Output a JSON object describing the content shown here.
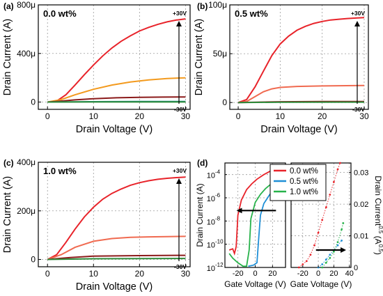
{
  "colors": {
    "red": "#e8232a",
    "orange": "#f39a1e",
    "salmon": "#f06a50",
    "darkred": "#8b1a1a",
    "teal": "#1a8a8a",
    "green": "#2e8b3a",
    "blue": "#1f8fd6",
    "green2": "#27b24a"
  },
  "chart_data": [
    {
      "panel": "(a)",
      "type": "line",
      "annotation": "0.0 wt%",
      "xlabel": "Drain Voltage (V)",
      "ylabel": "Drain Current (A)",
      "xlim": [
        -2,
        31
      ],
      "ylim": [
        -60,
        800
      ],
      "yunit": 1e-06,
      "xticks": [
        "0",
        "10",
        "20",
        "30"
      ],
      "yticks": [
        {
          "v": 0,
          "t": "0"
        },
        {
          "v": 400,
          "t": "400μ"
        },
        {
          "v": 800,
          "t": "800μ"
        }
      ],
      "gate_top": "+30V",
      "gate_bottom": "-30V",
      "series": [
        {
          "color": "#e8232a",
          "points": [
            [
              0,
              0
            ],
            [
              2,
              8
            ],
            [
              4,
              60
            ],
            [
              6,
              140
            ],
            [
              8,
              225
            ],
            [
              10,
              305
            ],
            [
              12,
              380
            ],
            [
              14,
              445
            ],
            [
              16,
              500
            ],
            [
              18,
              545
            ],
            [
              20,
              585
            ],
            [
              22,
              615
            ],
            [
              24,
              640
            ],
            [
              26,
              660
            ],
            [
              28,
              675
            ],
            [
              30,
              685
            ]
          ]
        },
        {
          "color": "#f39a1e",
          "points": [
            [
              0,
              0
            ],
            [
              3,
              20
            ],
            [
              6,
              60
            ],
            [
              10,
              105
            ],
            [
              14,
              140
            ],
            [
              18,
              165
            ],
            [
              22,
              182
            ],
            [
              26,
              194
            ],
            [
              30,
              200
            ]
          ]
        },
        {
          "color": "#8b1a1a",
          "points": [
            [
              0,
              0
            ],
            [
              3,
              8
            ],
            [
              6,
              18
            ],
            [
              10,
              28
            ],
            [
              15,
              35
            ],
            [
              20,
              39
            ],
            [
              25,
              41
            ],
            [
              30,
              42
            ]
          ]
        },
        {
          "color": "#1a8a8a",
          "points": [
            [
              0,
              0
            ],
            [
              5,
              2
            ],
            [
              10,
              3
            ],
            [
              20,
              4
            ],
            [
              30,
              4
            ]
          ]
        },
        {
          "color": "#2e8b3a",
          "points": [
            [
              0,
              0
            ],
            [
              10,
              1
            ],
            [
              20,
              1
            ],
            [
              30,
              1
            ]
          ]
        }
      ]
    },
    {
      "panel": "(b)",
      "type": "line",
      "annotation": "0.5 wt%",
      "xlabel": "Drain Voltage (V)",
      "ylabel": "Drain Current (A)",
      "xlim": [
        -2,
        31
      ],
      "ylim": [
        -7,
        100
      ],
      "yunit": 1e-06,
      "xticks": [
        "0",
        "10",
        "20",
        "30"
      ],
      "yticks": [
        {
          "v": 0,
          "t": "0"
        },
        {
          "v": 50,
          "t": "50μ"
        },
        {
          "v": 100,
          "t": "100μ"
        }
      ],
      "gate_top": "+30V",
      "gate_bottom": "-30V",
      "series": [
        {
          "color": "#e8232a",
          "points": [
            [
              0,
              0
            ],
            [
              2,
              3
            ],
            [
              4,
              16
            ],
            [
              6,
              32
            ],
            [
              8,
              48
            ],
            [
              10,
              60
            ],
            [
              12,
              68
            ],
            [
              14,
              74
            ],
            [
              16,
              78
            ],
            [
              18,
              81
            ],
            [
              20,
              83
            ],
            [
              22,
              84.5
            ],
            [
              24,
              85.3
            ],
            [
              26,
              86
            ],
            [
              28,
              86.5
            ],
            [
              30,
              87
            ]
          ]
        },
        {
          "color": "#f06a50",
          "points": [
            [
              0,
              0
            ],
            [
              2,
              1
            ],
            [
              4,
              6
            ],
            [
              6,
              11
            ],
            [
              8,
              14
            ],
            [
              10,
              15.5
            ],
            [
              14,
              16.5
            ],
            [
              20,
              17
            ],
            [
              30,
              17.5
            ]
          ]
        },
        {
          "color": "#8b1a1a",
          "points": [
            [
              0,
              0
            ],
            [
              10,
              0.8
            ],
            [
              20,
              1
            ],
            [
              30,
              1
            ]
          ]
        },
        {
          "color": "#2e8b3a",
          "points": [
            [
              0,
              0
            ],
            [
              10,
              0.3
            ],
            [
              30,
              0.4
            ]
          ]
        }
      ]
    },
    {
      "panel": "(c)",
      "type": "line",
      "annotation": "1.0 wt%",
      "xlabel": "Drain Voltage (V)",
      "ylabel": "Drain Current (A)",
      "xlim": [
        -2,
        31
      ],
      "ylim": [
        -30,
        400
      ],
      "yunit": 1e-06,
      "xticks": [
        "0",
        "10",
        "20",
        "30"
      ],
      "yticks": [
        {
          "v": 0,
          "t": "0"
        },
        {
          "v": 200,
          "t": "200μ"
        },
        {
          "v": 400,
          "t": "400μ"
        }
      ],
      "gate_top": "+30V",
      "gate_bottom": "-30V",
      "series": [
        {
          "color": "#e8232a",
          "points": [
            [
              0,
              0
            ],
            [
              2,
              20
            ],
            [
              4,
              70
            ],
            [
              6,
              125
            ],
            [
              8,
              175
            ],
            [
              10,
              215
            ],
            [
              12,
              248
            ],
            [
              14,
              272
            ],
            [
              16,
              290
            ],
            [
              18,
              305
            ],
            [
              20,
              316
            ],
            [
              22,
              324
            ],
            [
              24,
              330
            ],
            [
              26,
              334
            ],
            [
              28,
              337
            ],
            [
              30,
              339
            ]
          ]
        },
        {
          "color": "#f06a50",
          "points": [
            [
              0,
              0
            ],
            [
              3,
              20
            ],
            [
              6,
              50
            ],
            [
              10,
              75
            ],
            [
              14,
              86
            ],
            [
              18,
              91
            ],
            [
              22,
              93
            ],
            [
              26,
              94
            ],
            [
              30,
              95
            ]
          ]
        },
        {
          "color": "#8b1a1a",
          "points": [
            [
              0,
              0
            ],
            [
              5,
              8
            ],
            [
              10,
              14
            ],
            [
              20,
              16
            ],
            [
              30,
              17
            ]
          ]
        },
        {
          "color": "#2e8b3a",
          "points": [
            [
              0,
              0
            ],
            [
              10,
              3
            ],
            [
              30,
              4
            ]
          ]
        }
      ]
    },
    {
      "panel": "(d)",
      "type": "line",
      "subtype": "transfer",
      "xlabel_left": "Gate Voltage (V)",
      "xlabel_right": "Gate Voltage (V)",
      "ylabel_left": "Drain Current (A)",
      "ylabel_right": "Drain Current",
      "ylabel_right_exp": "0.5",
      "ylabel_right_unit": " (A",
      "ylabel_right_unit_exp": "0.5",
      "ylabel_right_close": ")",
      "left_xlim": [
        -35,
        35
      ],
      "left_ylog_exp": [
        -12,
        -3
      ],
      "left_xticks": [
        {
          "v": -20,
          "t": "-20"
        },
        {
          "v": 0,
          "t": "0"
        },
        {
          "v": 20,
          "t": "20"
        }
      ],
      "left_yticks": [
        {
          "e": -4,
          "t": "10",
          "s": "-4"
        },
        {
          "e": -6,
          "t": "10",
          "s": "-6"
        },
        {
          "e": -8,
          "t": "10",
          "s": "-8"
        },
        {
          "e": -10,
          "t": "10",
          "s": "-10"
        },
        {
          "e": -12,
          "t": "10",
          "s": "-12"
        }
      ],
      "right_xlim": [
        -35,
        42
      ],
      "right_ylim": [
        0,
        0.033
      ],
      "right_xticks": [
        {
          "v": -20,
          "t": "-20"
        },
        {
          "v": 0,
          "t": "0"
        },
        {
          "v": 20,
          "t": "20"
        },
        {
          "v": 40,
          "t": "40"
        }
      ],
      "right_yticks": [
        {
          "v": 0,
          "t": "0"
        },
        {
          "v": 0.01,
          "t": "0.01"
        },
        {
          "v": 0.02,
          "t": "0.02"
        },
        {
          "v": 0.03,
          "t": "0.03"
        }
      ],
      "legend": [
        {
          "label": "0.0 wt%",
          "color": "#e8232a"
        },
        {
          "label": "0.5 wt%",
          "color": "#1f8fd6"
        },
        {
          "label": "1.0 wt%",
          "color": "#27b24a"
        }
      ],
      "log_series": [
        {
          "color": "#e8232a",
          "points": [
            [
              -30,
              -10.5
            ],
            [
              -26,
              -10.4
            ],
            [
              -24,
              -10.8
            ],
            [
              -22,
              -10.2
            ],
            [
              -20,
              -7.5
            ],
            [
              -16,
              -6.2
            ],
            [
              -10,
              -5.3
            ],
            [
              -4,
              -4.8
            ],
            [
              2,
              -4.4
            ],
            [
              10,
              -4.0
            ],
            [
              20,
              -3.6
            ],
            [
              30,
              -3.3
            ]
          ]
        },
        {
          "color": "#27b24a",
          "points": [
            [
              -30,
              -10.8
            ],
            [
              -26,
              -11.2
            ],
            [
              -20,
              -11.6
            ],
            [
              -14,
              -11.9
            ],
            [
              -10,
              -11.9
            ],
            [
              -7,
              -10.5
            ],
            [
              -5,
              -7.8
            ],
            [
              0,
              -6.4
            ],
            [
              6,
              -5.7
            ],
            [
              12,
              -5.2
            ],
            [
              20,
              -4.7
            ],
            [
              30,
              -4.0
            ]
          ]
        },
        {
          "color": "#1f8fd6",
          "points": [
            [
              -8,
              -11.9
            ],
            [
              -2,
              -11.8
            ],
            [
              2,
              -11.6
            ],
            [
              4,
              -9.5
            ],
            [
              6,
              -7.5
            ],
            [
              10,
              -6.5
            ],
            [
              16,
              -5.8
            ],
            [
              22,
              -5.2
            ],
            [
              30,
              -4.5
            ]
          ]
        }
      ],
      "sqrt_series": [
        {
          "color": "#e8232a",
          "points": [
            [
              -25,
              0
            ],
            [
              -20,
              0.001
            ],
            [
              -15,
              0.002
            ],
            [
              -10,
              0.004
            ],
            [
              -5,
              0.007
            ],
            [
              0,
              0.011
            ],
            [
              5,
              0.015
            ],
            [
              10,
              0.019
            ],
            [
              15,
              0.023
            ],
            [
              20,
              0.027
            ],
            [
              25,
              0.031
            ],
            [
              28,
              0.033
            ]
          ]
        },
        {
          "color": "#1f8fd6",
          "points": [
            [
              0,
              0
            ],
            [
              5,
              0.001
            ],
            [
              10,
              0.0025
            ],
            [
              15,
              0.004
            ],
            [
              20,
              0.0055
            ],
            [
              25,
              0.007
            ],
            [
              30,
              0.0085
            ]
          ]
        },
        {
          "color": "#27b24a",
          "points": [
            [
              5,
              0
            ],
            [
              10,
              0.0015
            ],
            [
              15,
              0.003
            ],
            [
              20,
              0.005
            ],
            [
              25,
              0.008
            ],
            [
              30,
              0.012
            ],
            [
              32,
              0.014
            ]
          ]
        }
      ]
    }
  ],
  "panel_labels": [
    "(a)",
    "(b)",
    "(c)",
    "(d)"
  ]
}
